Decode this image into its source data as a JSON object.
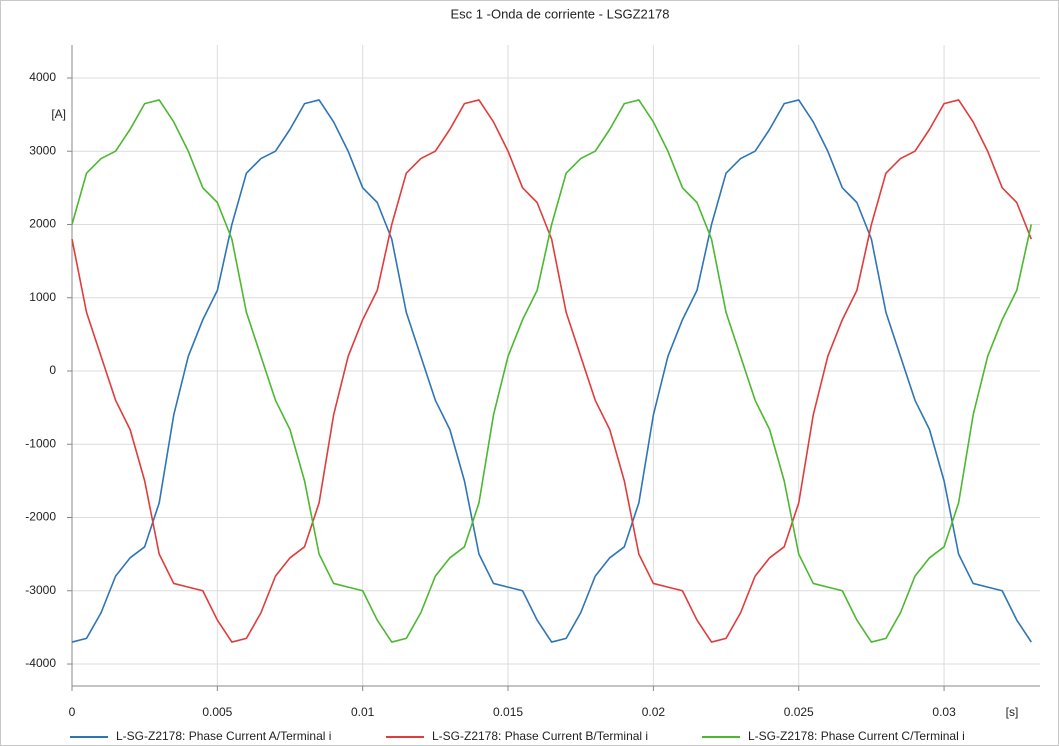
{
  "chart_data": {
    "type": "line",
    "title": "Esc 1 -Onda de corriente - LSGZ2178",
    "x_label": "[s]",
    "y_label": "[A]",
    "x": [
      0,
      0.0005,
      0.001,
      0.0015,
      0.002,
      0.0025,
      0.003,
      0.0035,
      0.004,
      0.0045,
      0.005,
      0.0055,
      0.006,
      0.0065,
      0.007,
      0.0075,
      0.008,
      0.0085,
      0.009,
      0.0095,
      0.01,
      0.0105,
      0.011,
      0.0115,
      0.012,
      0.0125,
      0.013,
      0.0135,
      0.014,
      0.0145,
      0.015,
      0.0155,
      0.016,
      0.0165,
      0.017,
      0.0175,
      0.018,
      0.0185,
      0.019,
      0.0195,
      0.02,
      0.0205,
      0.021,
      0.0215,
      0.022,
      0.0225,
      0.023,
      0.0235,
      0.024,
      0.0245,
      0.025,
      0.0255,
      0.026,
      0.0265,
      0.027,
      0.0275,
      0.028,
      0.0285,
      0.029,
      0.0295,
      0.03,
      0.0305,
      0.031,
      0.0315,
      0.032,
      0.0325,
      0.033
    ],
    "series": [
      {
        "name": "L-SG-Z2178: Phase Current A/Terminal i",
        "color": "#2e75b6",
        "values": [
          -3700,
          -3650,
          -3300,
          -2800,
          -2550,
          -2400,
          -1800,
          -600,
          200,
          700,
          1100,
          2000,
          2700,
          2900,
          3000,
          3300,
          3650,
          3700,
          3400,
          3000,
          2500,
          2300,
          1800,
          800,
          200,
          -400,
          -800,
          -1500,
          -2500,
          -2900,
          -2950,
          -3000,
          -3400,
          -3700,
          -3650,
          -3300,
          -2800,
          -2550,
          -2400,
          -1800,
          -600,
          200,
          700,
          1100,
          2000,
          2700,
          2900,
          3000,
          3300,
          3650,
          3700,
          3400,
          3000,
          2500,
          2300,
          1800,
          800,
          200,
          -400,
          -800,
          -1500,
          -2500,
          -2900,
          -2950,
          -3000,
          -3400,
          -3700
        ]
      },
      {
        "name": "L-SG-Z2178: Phase Current B/Terminal i",
        "color": "#e03c3c",
        "values": [
          1800,
          800,
          200,
          -400,
          -800,
          -1500,
          -2500,
          -2900,
          -2950,
          -3000,
          -3400,
          -3700,
          -3650,
          -3300,
          -2800,
          -2550,
          -2400,
          -1800,
          -600,
          200,
          700,
          1100,
          2000,
          2700,
          2900,
          3000,
          3300,
          3650,
          3700,
          3400,
          3000,
          2500,
          2300,
          1800,
          800,
          200,
          -400,
          -800,
          -1500,
          -2500,
          -2900,
          -2950,
          -3000,
          -3400,
          -3700,
          -3650,
          -3300,
          -2800,
          -2550,
          -2400,
          -1800,
          -600,
          200,
          700,
          1100,
          2000,
          2700,
          2900,
          3000,
          3300,
          3650,
          3700,
          3400,
          3000,
          2500,
          2300,
          1800
        ]
      },
      {
        "name": "L-SG-Z2178: Phase Current C/Terminal i",
        "color": "#4cb830",
        "values": [
          2000,
          2700,
          2900,
          3000,
          3300,
          3650,
          3700,
          3400,
          3000,
          2500,
          2300,
          1800,
          800,
          200,
          -400,
          -800,
          -1500,
          -2500,
          -2900,
          -2950,
          -3000,
          -3400,
          -3700,
          -3650,
          -3300,
          -2800,
          -2550,
          -2400,
          -1800,
          -600,
          200,
          700,
          1100,
          2000,
          2700,
          2900,
          3000,
          3300,
          3650,
          3700,
          3400,
          3000,
          2500,
          2300,
          1800,
          800,
          200,
          -400,
          -800,
          -1500,
          -2500,
          -2900,
          -2950,
          -3000,
          -3400,
          -3700,
          -3650,
          -3300,
          -2800,
          -2550,
          -2400,
          -1800,
          -600,
          200,
          700,
          1100,
          2000
        ]
      }
    ],
    "xlim": [
      0,
      0.0333
    ],
    "xticks": [
      0,
      0.005,
      0.01,
      0.015,
      0.02,
      0.025,
      0.03
    ],
    "ylim": [
      -4300,
      4450
    ],
    "yticks": [
      -4000,
      -3000,
      -2000,
      -1000,
      0,
      1000,
      2000,
      3000,
      4000
    ],
    "grid": true
  }
}
